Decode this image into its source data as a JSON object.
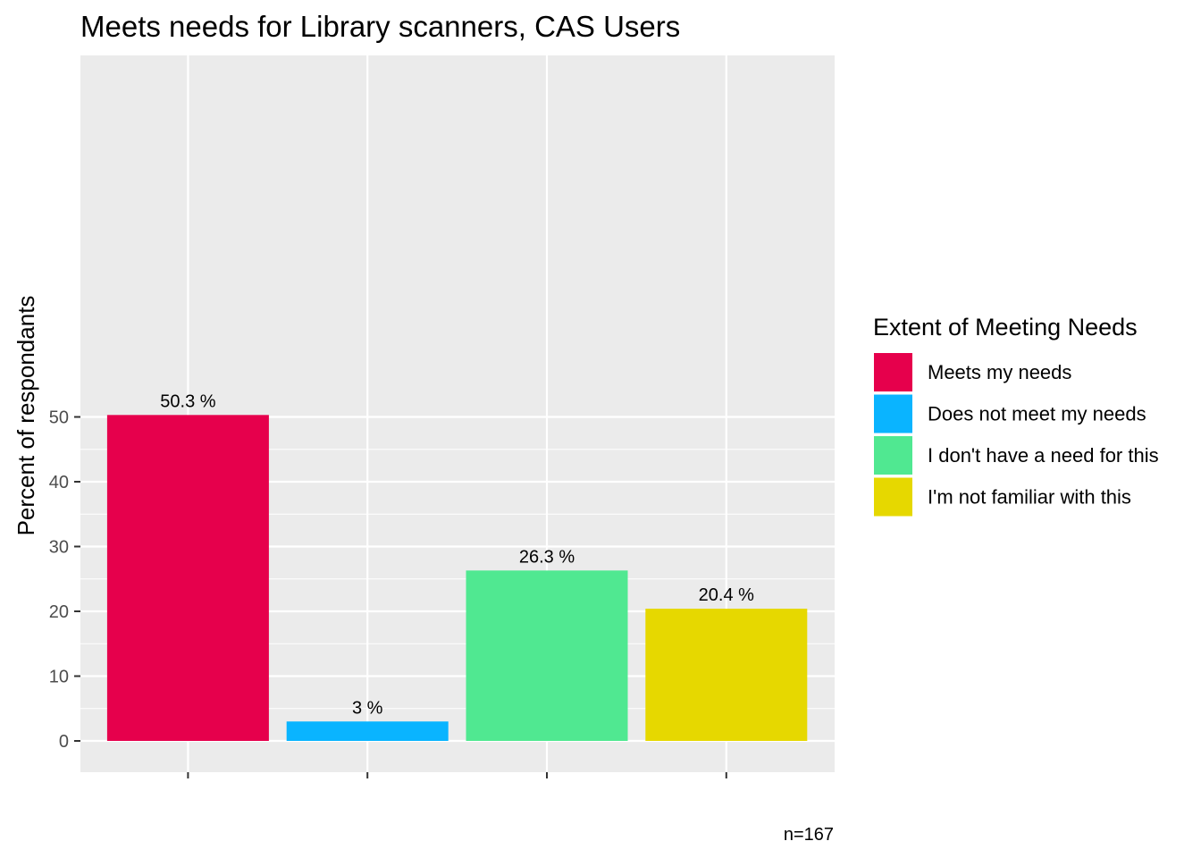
{
  "chart_data": {
    "type": "bar",
    "title": "Meets needs for Library scanners, CAS Users",
    "xlabel": "",
    "ylabel": "Percent of respondants",
    "ylim": [
      0,
      52.5
    ],
    "yticks": [
      0,
      10,
      20,
      30,
      40,
      50
    ],
    "grid": true,
    "legend_position": "right",
    "legend_title": "Extent of Meeting Needs",
    "categories": [
      "Meets my needs",
      "Does not meet my needs",
      "I don't have a need for this",
      "I'm not familiar with this"
    ],
    "values": [
      50.3,
      3,
      26.3,
      20.4
    ],
    "data_labels": [
      "50.3 %",
      "3 %",
      "26.3 %",
      "20.4 %"
    ],
    "colors": [
      "#e6004c",
      "#0ab4ff",
      "#50e891",
      "#e6d800"
    ],
    "caption": "n=167"
  }
}
